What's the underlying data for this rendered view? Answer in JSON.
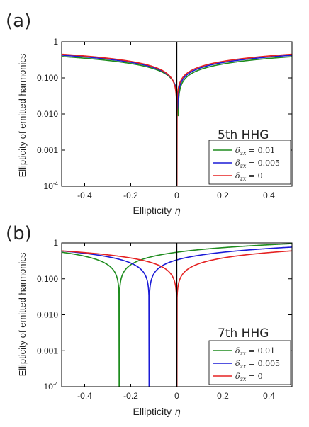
{
  "chart_data": [
    {
      "type": "line",
      "panel_label": "(a)",
      "annotation": "5th HHG",
      "xlabel": "Ellipticity",
      "xlabel_symbol": "η",
      "ylabel": "Ellipticity of emitted harmonics",
      "xlim": [
        -0.5,
        0.5
      ],
      "ylim": [
        0.0001,
        1
      ],
      "yscale": "log",
      "x_ticks": [
        "-0.4",
        "-0.2",
        "0",
        "0.2",
        "0.4"
      ],
      "y_ticks": [
        "10-4",
        "0.001",
        "0.010",
        "0.100",
        "1"
      ],
      "vline_x": 0,
      "legend_position": "bottom-right",
      "series": [
        {
          "name": "δzx = 0.01",
          "color": "#1e8c1e",
          "x0": 0.006,
          "amp": 0.55
        },
        {
          "name": "δzx = 0.005",
          "color": "#1a1ad6",
          "x0": 0.003,
          "amp": 0.6
        },
        {
          "name": "δzx = 0",
          "color": "#e52222",
          "x0": 0.0,
          "amp": 0.64
        }
      ]
    },
    {
      "type": "line",
      "panel_label": "(b)",
      "annotation": "7th HHG",
      "xlabel": "Ellipticity",
      "xlabel_symbol": "η",
      "ylabel": "Ellipticity of emitted harmonics",
      "xlim": [
        -0.5,
        0.5
      ],
      "ylim": [
        0.0001,
        1
      ],
      "yscale": "log",
      "x_ticks": [
        "-0.4",
        "-0.2",
        "0",
        "0.2",
        "0.4"
      ],
      "y_ticks": [
        "10-4",
        "0.001",
        "0.010",
        "0.100",
        "1"
      ],
      "vline_x": 0,
      "legend_position": "bottom-right",
      "series": [
        {
          "name": "δzx = 0.01",
          "color": "#1e8c1e",
          "x0": -0.25,
          "amp": 1.1
        },
        {
          "name": "δzx = 0.005",
          "color": "#1a1ad6",
          "x0": -0.12,
          "amp": 0.97
        },
        {
          "name": "δzx = 0",
          "color": "#e52222",
          "x0": 0.0,
          "amp": 0.85
        }
      ]
    }
  ]
}
